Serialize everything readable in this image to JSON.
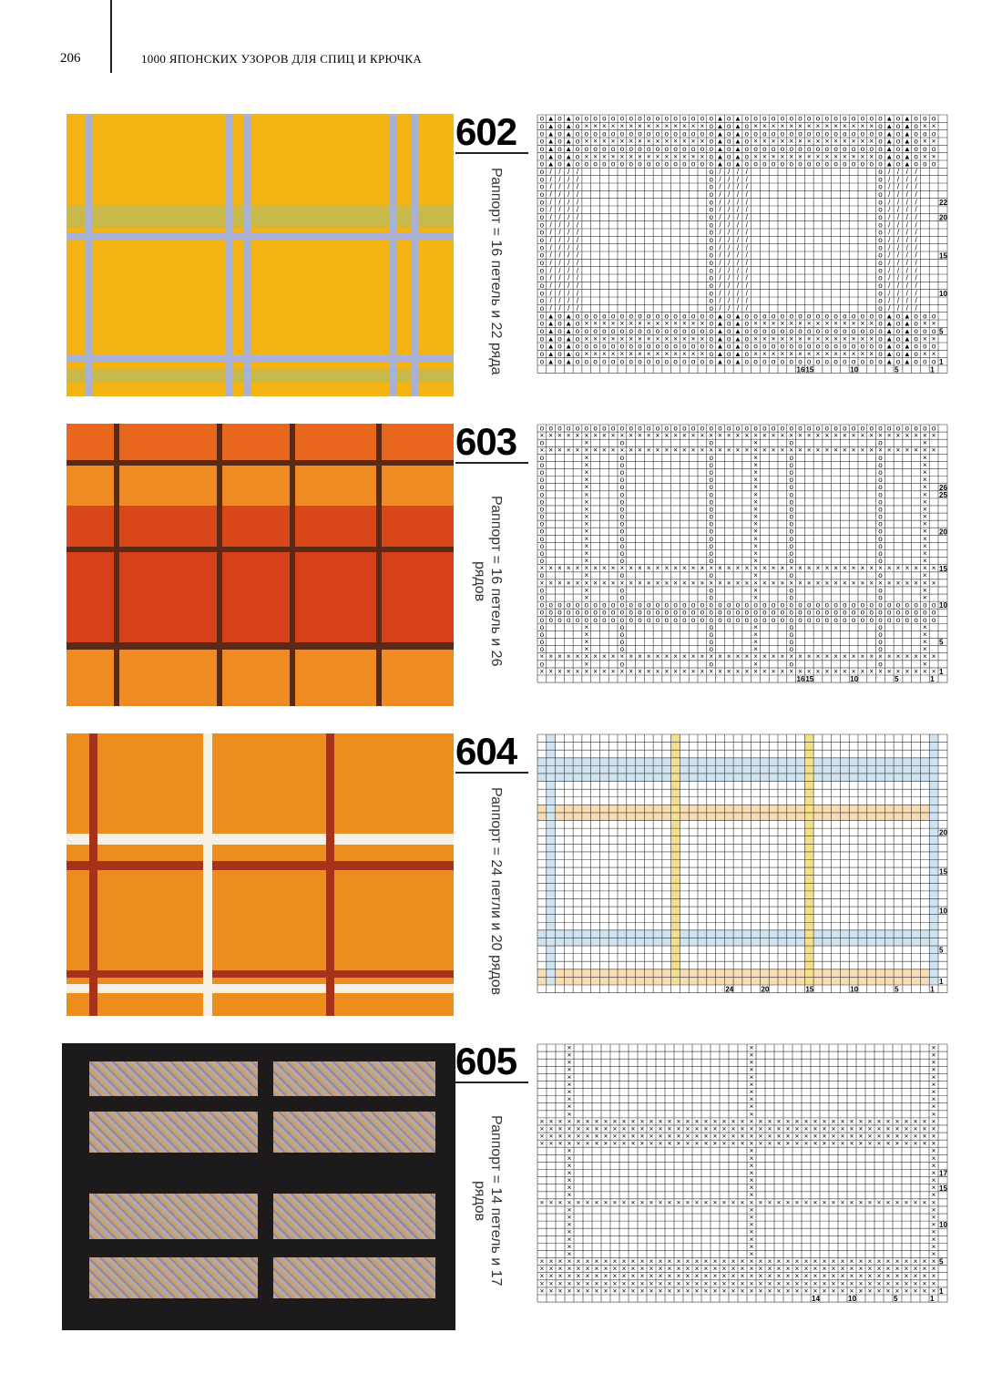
{
  "header": {
    "page_number": "206",
    "title": "1000 ЯПОНСКИХ УЗОРОВ ДЛЯ СПИЦ И КРЮЧКА"
  },
  "patterns": [
    {
      "number": "602",
      "rapport": "Раппорт = 16 петель и 22 ряда",
      "column_labels": [
        "16",
        "15",
        "10",
        "5",
        "1"
      ],
      "row_labels": [
        "22",
        "20",
        "15",
        "10",
        "5",
        "1"
      ]
    },
    {
      "number": "603",
      "rapport": "Раппорт = 16 петель и 26 рядов",
      "column_labels": [
        "16",
        "15",
        "10",
        "5",
        "1"
      ],
      "row_labels": [
        "26",
        "25",
        "20",
        "15",
        "10",
        "5",
        "1"
      ]
    },
    {
      "number": "604",
      "rapport": "Раппорт = 24 петли и 20 рядов",
      "column_labels": [
        "24",
        "20",
        "15",
        "10",
        "5",
        "1"
      ],
      "row_labels": [
        "20",
        "15",
        "10",
        "5",
        "1"
      ]
    },
    {
      "number": "605",
      "rapport": "Раппорт = 14 петель и 17 рядов",
      "column_labels": [
        "14",
        "10",
        "5",
        "1"
      ],
      "row_labels": [
        "17",
        "15",
        "10",
        "5",
        "1"
      ]
    }
  ]
}
